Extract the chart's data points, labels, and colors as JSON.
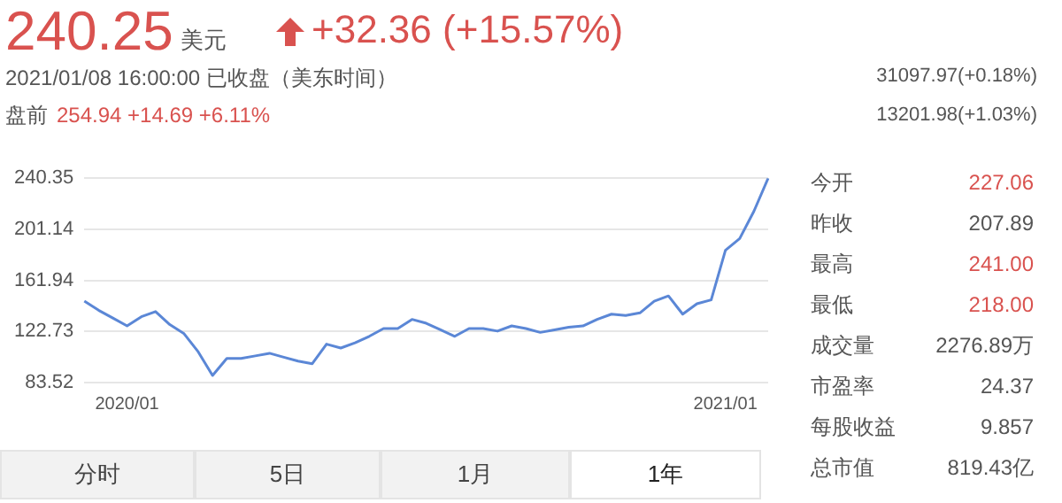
{
  "chart_data": {
    "type": "line",
    "title": "240.25",
    "annotations": [
      "美元",
      "+32.36 (+15.57%)",
      "2021/01/08 16:00:00 已收盘（美东时间）",
      "盘前",
      "254.94 +14.69 +6.11%",
      "31097.97(+0.18%)",
      "13201.98(+1.03%)",
      "今开 227.06",
      "昨收 207.89",
      "最高 241.00",
      "最低 218.00",
      "成交量 2276.89万",
      "市盈率 24.37",
      "每股收益 9.857",
      "总市值 819.43亿",
      "分时",
      "5日",
      "1月",
      "1年"
    ],
    "categories": [
      null,
      null,
      null,
      "2020/01",
      null,
      null,
      null,
      null,
      null,
      null,
      null,
      null,
      null,
      null,
      null,
      null,
      null,
      null,
      null,
      null,
      null,
      null,
      null,
      null,
      null,
      null,
      null,
      null,
      null,
      null,
      null,
      null,
      null,
      null,
      null,
      null,
      null,
      null,
      null,
      null,
      null,
      null,
      null,
      null,
      null,
      "2021/01",
      null,
      null,
      null
    ],
    "series": [
      {
        "color": "#5b87d6",
        "values": [
          146,
          139,
          133,
          127,
          134,
          138,
          128,
          121,
          107,
          89,
          102,
          102,
          104,
          106,
          103,
          100,
          98,
          113,
          110,
          114,
          119,
          125,
          125,
          132,
          129,
          124,
          119,
          125,
          125,
          123,
          127,
          125,
          122,
          124,
          126,
          127,
          132,
          136,
          135,
          137,
          146,
          150,
          136,
          144,
          147,
          185,
          194,
          215,
          240.35
        ]
      }
    ],
    "ylim": [
      83.52,
      240.35
    ],
    "yticks": [
      83.52,
      122.73,
      161.94,
      201.14,
      240.35
    ],
    "grid": "y",
    "legend": false,
    "marker": "none",
    "line_style": "solid"
  }
}
